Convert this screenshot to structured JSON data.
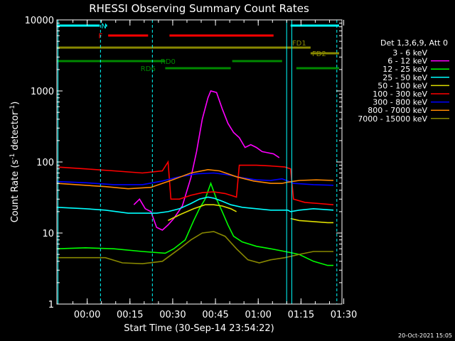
{
  "chart_data": {
    "type": "line",
    "title": "RHESSI Observing Summary Count Rates",
    "xlabel": "Start Time (30-Sep-14 23:54:22)",
    "ylabel_main": "Count Rate (s",
    "ylabel_sup1": "-1",
    "ylabel_mid": " detector",
    "ylabel_sup2": "-1",
    "ylabel_end": ")",
    "y_scale": "log",
    "ylim": [
      1,
      10000
    ],
    "xlim_minutes": [
      -5,
      95
    ],
    "x_ticks": [
      {
        "t": 5.63,
        "label": "00:00"
      },
      {
        "t": 20.63,
        "label": "00:15"
      },
      {
        "t": 35.63,
        "label": "00:30"
      },
      {
        "t": 50.63,
        "label": "00:45"
      },
      {
        "t": 65.63,
        "label": "01:00"
      },
      {
        "t": 80.63,
        "label": "01:15"
      },
      {
        "t": 95.63,
        "label": "01:30"
      }
    ],
    "y_ticks": [
      {
        "v": 1,
        "label": "1"
      },
      {
        "v": 10,
        "label": "10"
      },
      {
        "v": 100,
        "label": "100"
      },
      {
        "v": 1000,
        "label": "1000"
      },
      {
        "v": 10000,
        "label": "10000"
      }
    ],
    "legend_header": "Det 1,3,6,9, Att 0",
    "legend_placement": "right",
    "series": [
      {
        "name": "3 - 6 keV",
        "color": "#000000",
        "points": [
          [
            8,
            -1
          ],
          [
            22,
            27
          ],
          [
            25,
            22
          ],
          [
            28,
            15
          ],
          [
            31,
            11
          ],
          [
            34,
            13
          ],
          [
            36,
            16
          ],
          [
            39,
            22
          ],
          [
            42,
            40
          ],
          [
            44,
            70
          ],
          [
            46,
            150
          ],
          [
            48,
            300
          ],
          [
            50,
            420
          ],
          [
            52,
            430
          ],
          [
            54,
            320
          ],
          [
            56,
            230
          ],
          [
            58,
            180
          ],
          [
            60,
            160
          ],
          [
            62,
            150
          ],
          [
            64,
            145
          ],
          [
            66,
            140
          ],
          [
            68,
            130
          ],
          [
            70,
            120
          ],
          [
            72,
            105
          ],
          [
            74,
            96
          ],
          [
            75,
            -1
          ]
        ]
      },
      {
        "name": "6 - 12 keV",
        "color": "#ff00ff",
        "points": [
          [
            21,
            -1
          ],
          [
            22,
            25
          ],
          [
            24,
            30
          ],
          [
            26,
            22
          ],
          [
            28,
            20
          ],
          [
            30,
            12
          ],
          [
            32,
            11
          ],
          [
            34,
            13
          ],
          [
            36,
            16
          ],
          [
            39,
            24
          ],
          [
            42,
            60
          ],
          [
            44,
            140
          ],
          [
            46,
            400
          ],
          [
            48,
            800
          ],
          [
            49,
            1000
          ],
          [
            51,
            950
          ],
          [
            53,
            560
          ],
          [
            55,
            350
          ],
          [
            57,
            260
          ],
          [
            59,
            220
          ],
          [
            61,
            160
          ],
          [
            63,
            175
          ],
          [
            65,
            160
          ],
          [
            67,
            140
          ],
          [
            69,
            135
          ],
          [
            71,
            130
          ],
          [
            73,
            115
          ],
          [
            75,
            -1
          ]
        ]
      },
      {
        "name": "12 - 25 keV",
        "color": "#00ff00",
        "points": [
          [
            -5,
            6
          ],
          [
            5,
            6.2
          ],
          [
            15,
            6
          ],
          [
            25,
            5.5
          ],
          [
            33,
            5.2
          ],
          [
            36,
            6
          ],
          [
            40,
            8
          ],
          [
            43,
            15
          ],
          [
            45,
            22
          ],
          [
            47,
            30
          ],
          [
            49,
            50
          ],
          [
            51,
            30
          ],
          [
            53,
            20
          ],
          [
            55,
            13
          ],
          [
            57,
            9
          ],
          [
            60,
            7.5
          ],
          [
            65,
            6.5
          ],
          [
            70,
            6
          ],
          [
            75,
            5.5
          ],
          [
            80,
            5
          ],
          [
            85,
            4
          ],
          [
            90,
            3.5
          ],
          [
            92,
            3.5
          ]
        ]
      },
      {
        "name": "25 - 50 keV",
        "color": "#00ffff",
        "points": [
          [
            -5,
            23
          ],
          [
            5,
            22
          ],
          [
            12,
            21
          ],
          [
            20,
            19
          ],
          [
            25,
            19
          ],
          [
            30,
            19
          ],
          [
            34,
            20
          ],
          [
            38,
            22
          ],
          [
            42,
            26
          ],
          [
            45,
            30
          ],
          [
            48,
            32
          ],
          [
            50,
            31
          ],
          [
            53,
            28
          ],
          [
            56,
            25
          ],
          [
            60,
            23
          ],
          [
            65,
            22
          ],
          [
            70,
            21
          ],
          [
            75,
            21
          ],
          [
            76,
            21
          ],
          [
            77,
            20
          ],
          [
            80,
            21
          ],
          [
            85,
            22
          ],
          [
            92,
            21
          ]
        ]
      },
      {
        "name": "50 - 100 keV",
        "color": "#dddd00",
        "points": [
          [
            34,
            15
          ],
          [
            38,
            18
          ],
          [
            43,
            22
          ],
          [
            47,
            25
          ],
          [
            50,
            25
          ],
          [
            53,
            24
          ],
          [
            56,
            22
          ],
          [
            58,
            20
          ],
          [
            76,
            -1
          ],
          [
            77,
            16
          ],
          [
            80,
            15
          ],
          [
            85,
            14.5
          ],
          [
            90,
            14
          ],
          [
            92,
            14
          ]
        ]
      },
      {
        "name": "100 - 300 keV",
        "color": "#ff0000",
        "points": [
          [
            -5,
            85
          ],
          [
            5,
            80
          ],
          [
            15,
            75
          ],
          [
            25,
            70
          ],
          [
            32,
            75
          ],
          [
            34,
            100
          ],
          [
            35,
            30
          ],
          [
            38,
            30
          ],
          [
            42,
            34
          ],
          [
            46,
            37
          ],
          [
            50,
            38
          ],
          [
            54,
            36
          ],
          [
            57,
            33
          ],
          [
            58,
            32
          ],
          [
            59,
            90
          ],
          [
            65,
            90
          ],
          [
            70,
            88
          ],
          [
            75,
            85
          ],
          [
            77,
            80
          ],
          [
            78,
            30
          ],
          [
            82,
            27
          ],
          [
            87,
            26
          ],
          [
            92,
            25
          ]
        ]
      },
      {
        "name": "300 - 800 keV",
        "color": "#0000ff",
        "points": [
          [
            -5,
            53
          ],
          [
            5,
            51
          ],
          [
            15,
            48
          ],
          [
            25,
            48
          ],
          [
            32,
            54
          ],
          [
            38,
            62
          ],
          [
            44,
            68
          ],
          [
            50,
            70
          ],
          [
            55,
            66
          ],
          [
            60,
            60
          ],
          [
            65,
            56
          ],
          [
            70,
            55
          ],
          [
            74,
            58
          ],
          [
            76,
            54
          ],
          [
            78,
            50
          ],
          [
            85,
            48
          ],
          [
            92,
            47
          ]
        ]
      },
      {
        "name": "800 - 7000 keV",
        "color": "#ff8800",
        "points": [
          [
            -5,
            50
          ],
          [
            5,
            47
          ],
          [
            12,
            45
          ],
          [
            20,
            42
          ],
          [
            28,
            44
          ],
          [
            35,
            55
          ],
          [
            42,
            70
          ],
          [
            48,
            78
          ],
          [
            52,
            75
          ],
          [
            58,
            62
          ],
          [
            64,
            54
          ],
          [
            70,
            50
          ],
          [
            74,
            50
          ],
          [
            76,
            52
          ],
          [
            80,
            55
          ],
          [
            86,
            56
          ],
          [
            92,
            55
          ]
        ]
      },
      {
        "name": "7000 - 15000 keV",
        "color": "#888800",
        "points": [
          [
            -5,
            4.5
          ],
          [
            5,
            4.5
          ],
          [
            12,
            4.5
          ],
          [
            18,
            3.8
          ],
          [
            25,
            3.7
          ],
          [
            32,
            4
          ],
          [
            38,
            6
          ],
          [
            42,
            8
          ],
          [
            46,
            10
          ],
          [
            50,
            10.5
          ],
          [
            54,
            9
          ],
          [
            58,
            6
          ],
          [
            62,
            4.2
          ],
          [
            66,
            3.8
          ],
          [
            70,
            4.2
          ],
          [
            75,
            4.5
          ],
          [
            80,
            5
          ],
          [
            85,
            5.5
          ],
          [
            92,
            5.5
          ]
        ]
      }
    ],
    "vertical_lines": [
      {
        "t": -4.6,
        "style": "solid"
      },
      {
        "t": 10.3,
        "style": "dashed"
      },
      {
        "t": 28.5,
        "style": "dashed"
      },
      {
        "t": 75.6,
        "style": "solid"
      },
      {
        "t": 77.4,
        "style": "solid"
      },
      {
        "t": 93.2,
        "style": "dashed"
      }
    ],
    "flags": [
      {
        "label": "N",
        "color": "#00ffff",
        "y": 8,
        "segments": [
          [
            -5,
            10
          ],
          [
            12,
            -1
          ],
          [
            77,
            94
          ]
        ],
        "label_at": 11.5
      },
      {
        "label": "F",
        "color": "#ff0000",
        "y": 22,
        "segments": [
          [
            13,
            27
          ],
          [
            34.5,
            71
          ]
        ],
        "label_at": 10.3
      },
      {
        "label": "FD1",
        "color": "#888800",
        "y": 39,
        "segments": [
          [
            -5,
            84
          ]
        ],
        "label_at": 80
      },
      {
        "label": "FD2",
        "color": "#888800",
        "y": 47,
        "segments": [
          [
            84,
            94
          ]
        ],
        "label_at": 87
      },
      {
        "label": "RD0",
        "color": "#008800",
        "y": 58,
        "segments": [
          [
            -5,
            33
          ],
          [
            56.5,
            74
          ]
        ],
        "label_at": 34
      },
      {
        "label": "RD6",
        "color": "#008800",
        "y": 68,
        "segments": [
          [
            33,
            56
          ],
          [
            79,
            94
          ]
        ],
        "label_at": 27
      }
    ],
    "footer_timestamp": "20-Oct-2021 15:05"
  }
}
